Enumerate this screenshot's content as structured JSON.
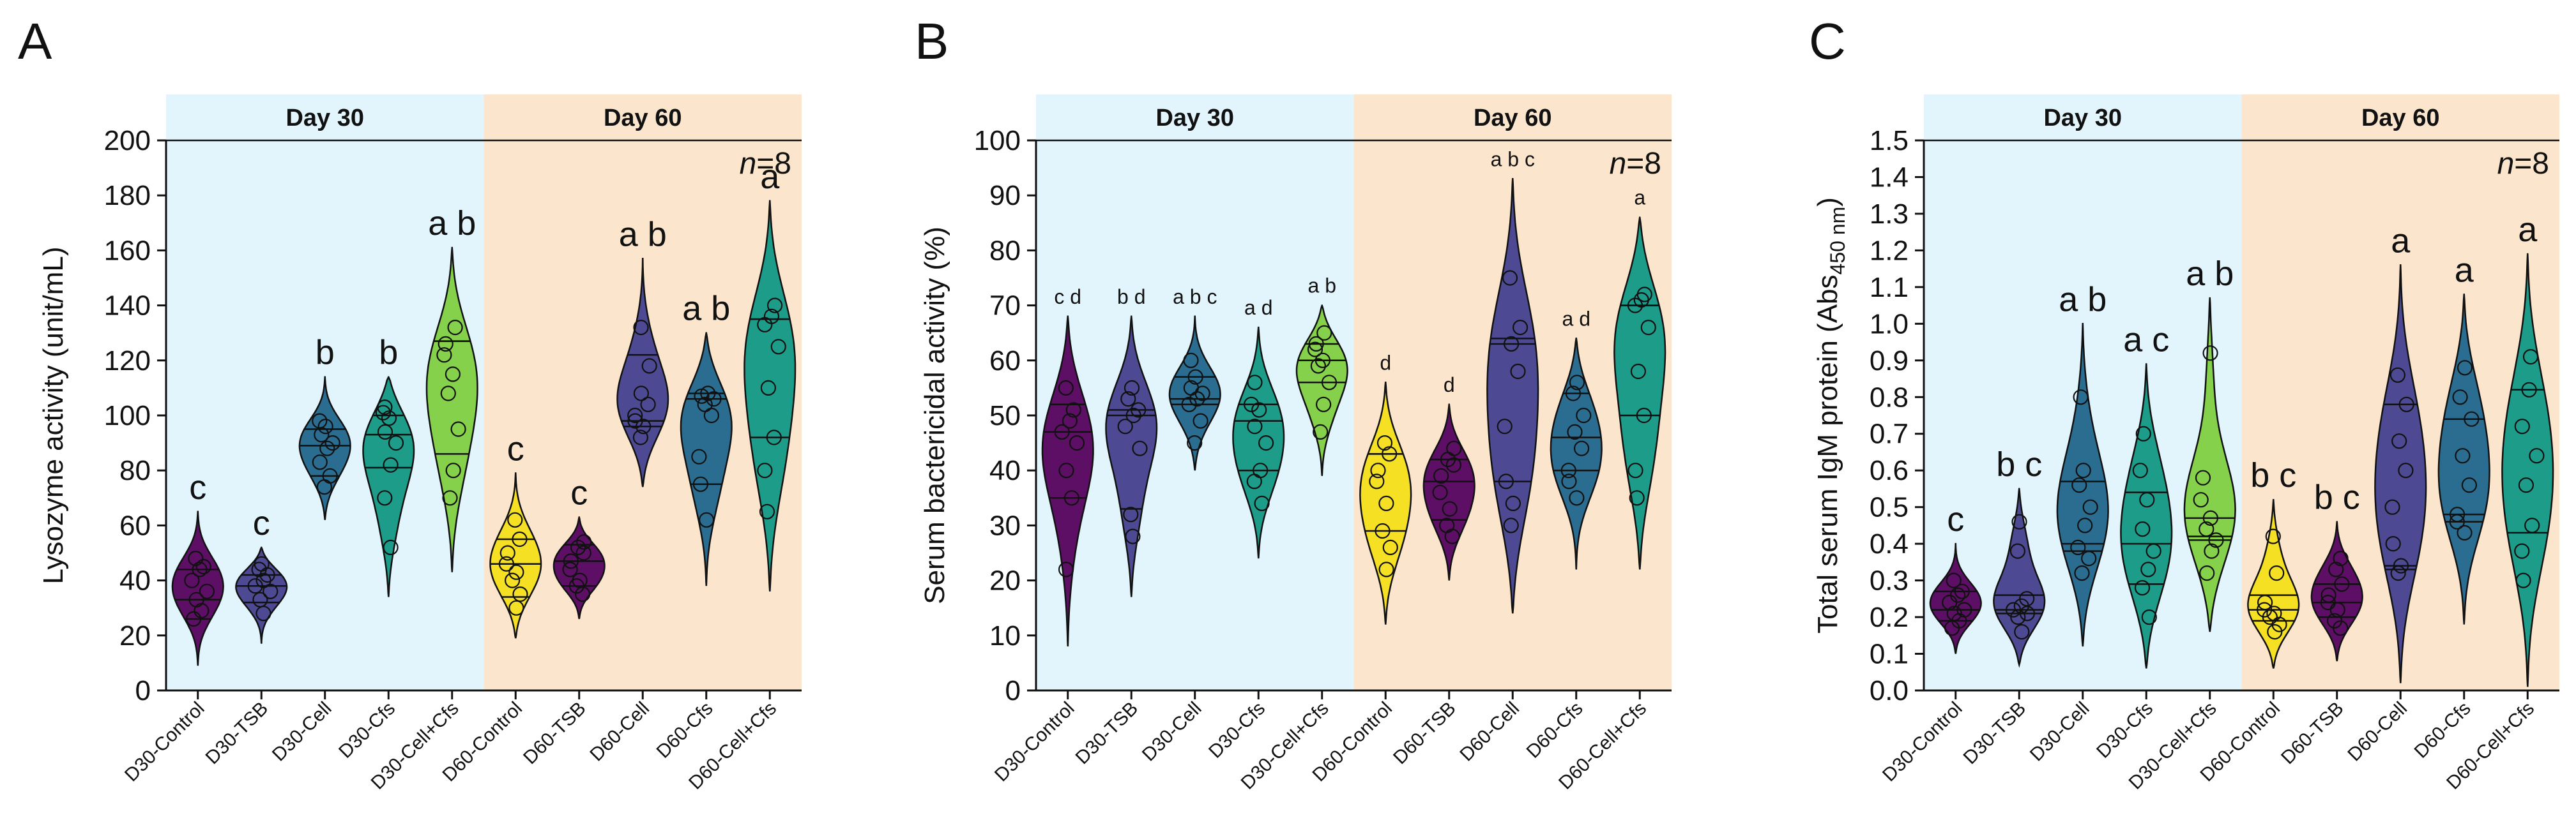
{
  "chart_data": [
    {
      "type": "violin",
      "panel": "A",
      "ylabel": "Lysozyme activity (unit/mL)",
      "ylim": [
        0,
        200
      ],
      "yticks": [
        0,
        20,
        40,
        60,
        80,
        100,
        120,
        140,
        160,
        180,
        200
      ],
      "groups": [
        {
          "label": "Day 30"
        },
        {
          "label": "Day 60"
        }
      ],
      "n_label": {
        "italic": "n",
        "rest": "=8"
      },
      "sig_style": "large",
      "categories": [
        {
          "label": "D30-Control",
          "color": "#5c0f64",
          "range": [
            9,
            65
          ],
          "median": 33,
          "q1": 26,
          "q3": 44,
          "sig": "c",
          "points": [
            26,
            29,
            33,
            36,
            40,
            44,
            45,
            48
          ]
        },
        {
          "label": "D30-TSB",
          "color": "#4d4a93",
          "range": [
            17,
            52
          ],
          "median": 38,
          "q1": 32,
          "q3": 42,
          "sig": "c",
          "points": [
            28,
            33,
            36,
            38,
            40,
            42,
            44,
            46
          ]
        },
        {
          "label": "D30-Cell",
          "color": "#2a6d91",
          "range": [
            62,
            114
          ],
          "median": 89,
          "q1": 78,
          "q3": 95,
          "sig": "b",
          "points": [
            74,
            78,
            83,
            88,
            90,
            93,
            96,
            98
          ]
        },
        {
          "label": "D30-Cfs",
          "color": "#1e9c8a",
          "range": [
            34,
            114
          ],
          "median": 93,
          "q1": 81,
          "q3": 100,
          "sig": "b",
          "points": [
            52,
            70,
            82,
            90,
            94,
            99,
            101,
            103
          ]
        },
        {
          "label": "D30-Cell+Cfs",
          "color": "#86d14b",
          "range": [
            43,
            161
          ],
          "median": 127,
          "q1": 86,
          "q3": 127,
          "sig": "a b",
          "points": [
            70,
            80,
            95,
            108,
            115,
            122,
            126,
            132
          ]
        },
        {
          "label": "D60-Control",
          "color": "#f5e023",
          "range": [
            19,
            79
          ],
          "median": 46,
          "q1": 34,
          "q3": 55,
          "sig": "c",
          "points": [
            30,
            35,
            40,
            43,
            46,
            50,
            55,
            62
          ]
        },
        {
          "label": "D60-TSB",
          "color": "#5c0f64",
          "range": [
            26,
            63
          ],
          "median": 47,
          "q1": 38,
          "q3": 53,
          "sig": "c",
          "points": [
            35,
            38,
            40,
            44,
            47,
            50,
            52,
            54
          ]
        },
        {
          "label": "D60-Cell",
          "color": "#4d4a93",
          "range": [
            74,
            157
          ],
          "median": 98,
          "q1": 96,
          "q3": 122,
          "sig": "a b",
          "points": [
            92,
            96,
            98,
            100,
            104,
            108,
            118,
            132
          ]
        },
        {
          "label": "D60-Cfs",
          "color": "#2a6d91",
          "range": [
            38,
            130
          ],
          "median": 106,
          "q1": 75,
          "q3": 108,
          "sig": "a b",
          "points": [
            62,
            75,
            85,
            100,
            104,
            106,
            107,
            108
          ]
        },
        {
          "label": "D60-Cell+Cfs",
          "color": "#1e9c8a",
          "range": [
            36,
            178
          ],
          "median": 135,
          "q1": 92,
          "q3": 135,
          "sig": "a",
          "points": [
            65,
            80,
            92,
            110,
            125,
            133,
            136,
            140
          ]
        }
      ]
    },
    {
      "type": "violin",
      "panel": "B",
      "ylabel": "Serum bactericidal activity (%)",
      "ylim": [
        0,
        100
      ],
      "yticks": [
        0,
        10,
        20,
        30,
        40,
        50,
        60,
        70,
        80,
        90,
        100
      ],
      "groups": [
        {
          "label": "Day 30"
        },
        {
          "label": "Day 60"
        }
      ],
      "n_label": {
        "italic": "n",
        "rest": "=8"
      },
      "sig_style": "small",
      "categories": [
        {
          "label": "D30-Control",
          "color": "#5c0f64",
          "range": [
            8,
            68
          ],
          "median": 47,
          "q1": 35,
          "q3": 52,
          "sig": "c d",
          "points": [
            22,
            35,
            40,
            45,
            47,
            49,
            51,
            55
          ]
        },
        {
          "label": "D30-TSB",
          "color": "#4d4a93",
          "range": [
            17,
            68
          ],
          "median": 50,
          "q1": 33,
          "q3": 51,
          "sig": "b d",
          "points": [
            28,
            32,
            44,
            48,
            50,
            51,
            53,
            55
          ]
        },
        {
          "label": "D30-Cell",
          "color": "#2a6d91",
          "range": [
            40,
            68
          ],
          "median": 53,
          "q1": 52,
          "q3": 57,
          "sig": "a b c",
          "points": [
            45,
            49,
            52,
            53,
            54,
            55,
            57,
            60
          ]
        },
        {
          "label": "D30-Cfs",
          "color": "#1e9c8a",
          "range": [
            24,
            66
          ],
          "median": 49,
          "q1": 40,
          "q3": 52,
          "sig": "a d",
          "points": [
            34,
            38,
            40,
            45,
            48,
            51,
            52,
            56
          ]
        },
        {
          "label": "D30-Cell+Cfs",
          "color": "#86d14b",
          "range": [
            39,
            70
          ],
          "median": 60,
          "q1": 56,
          "q3": 63,
          "sig": "a b",
          "points": [
            47,
            52,
            56,
            59,
            60,
            62,
            63,
            65
          ]
        },
        {
          "label": "D60-Control",
          "color": "#f5e023",
          "range": [
            12,
            56
          ],
          "median": 43,
          "q1": 29,
          "q3": 43,
          "sig": "d",
          "points": [
            22,
            26,
            29,
            34,
            38,
            40,
            43,
            45
          ]
        },
        {
          "label": "D60-TSB",
          "color": "#5c0f64",
          "range": [
            20,
            52
          ],
          "median": 38,
          "q1": 31,
          "q3": 42,
          "sig": "d",
          "points": [
            28,
            30,
            33,
            36,
            39,
            41,
            42,
            44
          ]
        },
        {
          "label": "D60-Cell",
          "color": "#4d4a93",
          "range": [
            14,
            93
          ],
          "median": 63,
          "q1": 38,
          "q3": 64,
          "sig": "a b c",
          "points": [
            30,
            34,
            38,
            48,
            58,
            63,
            66,
            75
          ]
        },
        {
          "label": "D60-Cfs",
          "color": "#2a6d91",
          "range": [
            22,
            64
          ],
          "median": 46,
          "q1": 40,
          "q3": 54,
          "sig": "a d",
          "points": [
            35,
            38,
            40,
            44,
            47,
            50,
            54,
            56
          ]
        },
        {
          "label": "D60-Cell+Cfs",
          "color": "#1e9c8a",
          "range": [
            22,
            86
          ],
          "median": 70,
          "q1": 50,
          "q3": 70,
          "sig": "a",
          "points": [
            35,
            40,
            50,
            58,
            66,
            70,
            71,
            72
          ]
        }
      ]
    },
    {
      "type": "violin",
      "panel": "C",
      "ylabel": "Total serum IgM protein (Abs 450 nm)",
      "ylabel_main": "Total serum IgM protein (Abs",
      "ylabel_sub": "450 nm",
      "ylabel_end": ")",
      "ylim": [
        0,
        1.5
      ],
      "yticks": [
        0.0,
        0.1,
        0.2,
        0.3,
        0.4,
        0.5,
        0.6,
        0.7,
        0.8,
        0.9,
        1.0,
        1.1,
        1.2,
        1.3,
        1.4,
        1.5
      ],
      "ytick_labels": [
        "0.0",
        "0.1",
        "0.2",
        "0.3",
        "0.4",
        "0.5",
        "0.6",
        "0.7",
        "0.8",
        "0.9",
        "1.0",
        "1.1",
        "1.2",
        "1.3",
        "1.4",
        "1.5"
      ],
      "groups": [
        {
          "label": "Day 30"
        },
        {
          "label": "Day 60"
        }
      ],
      "n_label": {
        "italic": "n",
        "rest": "=8"
      },
      "sig_style": "large",
      "categories": [
        {
          "label": "D30-Control",
          "color": "#5c0f64",
          "range": [
            0.1,
            0.4
          ],
          "median": 0.22,
          "q1": 0.19,
          "q3": 0.27,
          "sig": "c",
          "points": [
            0.17,
            0.19,
            0.21,
            0.22,
            0.24,
            0.26,
            0.27,
            0.3
          ]
        },
        {
          "label": "D30-TSB",
          "color": "#4d4a93",
          "range": [
            0.07,
            0.55
          ],
          "median": 0.22,
          "q1": 0.21,
          "q3": 0.26,
          "sig": "b c",
          "points": [
            0.16,
            0.2,
            0.21,
            0.22,
            0.23,
            0.25,
            0.38,
            0.46
          ]
        },
        {
          "label": "D30-Cell",
          "color": "#2a6d91",
          "range": [
            0.12,
            1.0
          ],
          "median": 0.4,
          "q1": 0.38,
          "q3": 0.57,
          "sig": "a b",
          "points": [
            0.32,
            0.36,
            0.39,
            0.45,
            0.5,
            0.56,
            0.6,
            0.8
          ]
        },
        {
          "label": "D30-Cfs",
          "color": "#1e9c8a",
          "range": [
            0.06,
            0.89
          ],
          "median": 0.4,
          "q1": 0.29,
          "q3": 0.54,
          "sig": "a c",
          "points": [
            0.2,
            0.28,
            0.33,
            0.38,
            0.44,
            0.52,
            0.6,
            0.7
          ]
        },
        {
          "label": "D30-Cell+Cfs",
          "color": "#86d14b",
          "range": [
            0.16,
            1.07
          ],
          "median": 0.42,
          "q1": 0.41,
          "q3": 0.47,
          "sig": "a b",
          "points": [
            0.32,
            0.38,
            0.41,
            0.44,
            0.47,
            0.52,
            0.58,
            0.92
          ]
        },
        {
          "label": "D60-Control",
          "color": "#f5e023",
          "range": [
            0.06,
            0.52
          ],
          "median": 0.22,
          "q1": 0.19,
          "q3": 0.26,
          "sig": "b c",
          "points": [
            0.16,
            0.18,
            0.2,
            0.21,
            0.22,
            0.24,
            0.32,
            0.42
          ]
        },
        {
          "label": "D60-TSB",
          "color": "#5c0f64",
          "range": [
            0.08,
            0.46
          ],
          "median": 0.24,
          "q1": 0.2,
          "q3": 0.29,
          "sig": "b c",
          "points": [
            0.17,
            0.19,
            0.22,
            0.24,
            0.26,
            0.29,
            0.33,
            0.36
          ]
        },
        {
          "label": "D60-Cell",
          "color": "#4d4a93",
          "range": [
            0.02,
            1.16
          ],
          "median": 0.34,
          "q1": 0.33,
          "q3": 0.78,
          "sig": "a",
          "points": [
            0.32,
            0.34,
            0.4,
            0.5,
            0.6,
            0.68,
            0.78,
            0.86
          ]
        },
        {
          "label": "D60-Cfs",
          "color": "#2a6d91",
          "range": [
            0.18,
            1.08
          ],
          "median": 0.48,
          "q1": 0.46,
          "q3": 0.74,
          "sig": "a",
          "points": [
            0.43,
            0.46,
            0.48,
            0.56,
            0.64,
            0.74,
            0.8,
            0.88
          ]
        },
        {
          "label": "D60-Cell+Cfs",
          "color": "#1e9c8a",
          "range": [
            0.01,
            1.19
          ],
          "median": 0.82,
          "q1": 0.43,
          "q3": 0.82,
          "sig": "a",
          "points": [
            0.3,
            0.38,
            0.45,
            0.56,
            0.64,
            0.72,
            0.82,
            0.91
          ]
        }
      ]
    }
  ],
  "colors": {
    "day30_bg": "#e2f5fc",
    "day60_bg": "#fbe6cd",
    "axis": "#111111"
  }
}
